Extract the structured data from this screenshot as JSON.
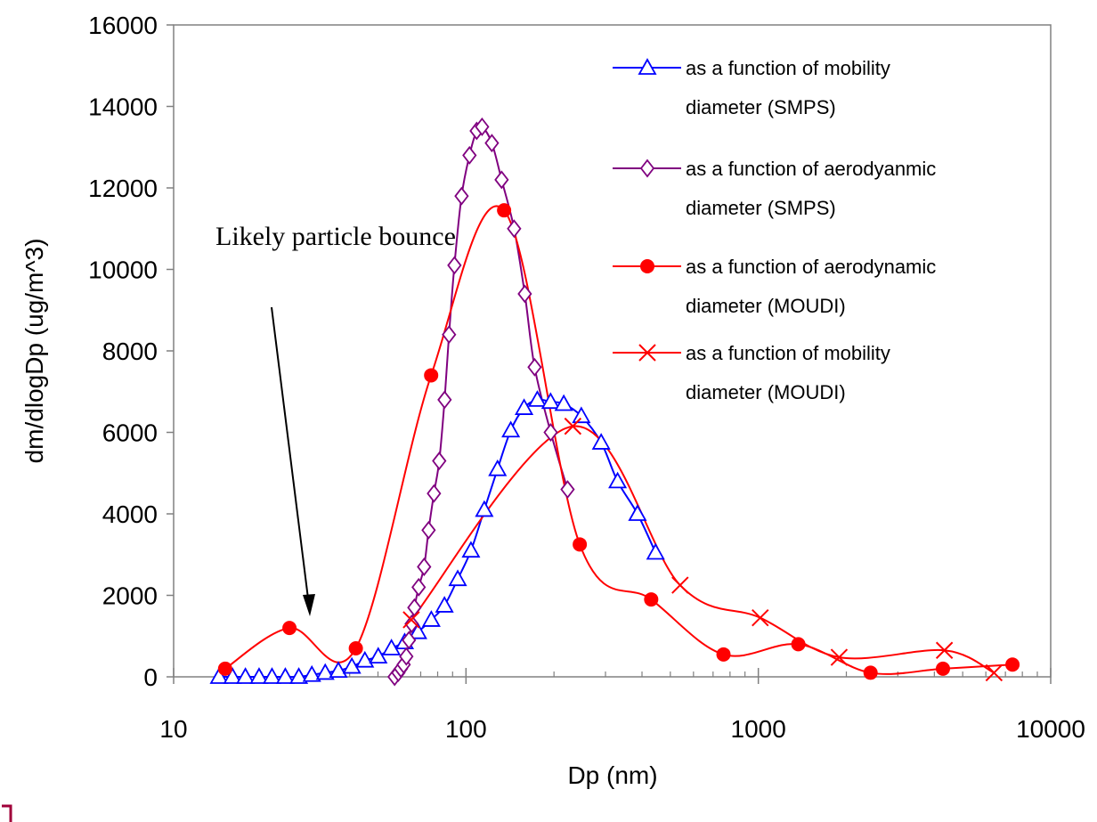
{
  "chart_data": {
    "type": "line",
    "xscale": "log",
    "xlabel": "Dp (nm)",
    "ylabel": "dm/dlogDp (ug/m^3)",
    "xlim": [
      10,
      10000
    ],
    "xticks": [
      10,
      100,
      1000,
      10000
    ],
    "ylim": [
      0,
      16000
    ],
    "yticks": [
      0,
      2000,
      4000,
      6000,
      8000,
      10000,
      12000,
      14000,
      16000
    ],
    "annotation": "Likely particle bounce",
    "series": [
      {
        "name": "as a function of mobility diameter (SMPS)",
        "color": "#0000ff",
        "marker": "triangle",
        "x": [
          14.3,
          15.9,
          17.6,
          19.6,
          21.7,
          24.1,
          26.8,
          29.7,
          33,
          36.6,
          40.7,
          45.1,
          50.1,
          55.6,
          61.7,
          68.5,
          76.1,
          84.4,
          93.7,
          104,
          115.5,
          128.2,
          142.3,
          158,
          175.4,
          194.7,
          216,
          248,
          290,
          330,
          386,
          445
        ],
        "values": [
          0,
          0,
          0,
          0,
          0,
          0,
          0,
          50,
          100,
          150,
          250,
          400,
          500,
          700,
          850,
          1100,
          1400,
          1750,
          2400,
          3100,
          4100,
          5100,
          6050,
          6600,
          6800,
          6750,
          6700,
          6400,
          5750,
          4800,
          4000,
          3050
        ]
      },
      {
        "name": "as a function of aerodyanmic diameter (SMPS)",
        "color": "#800080",
        "marker": "diamond",
        "x": [
          57,
          58.7,
          59.9,
          61.2,
          62.5,
          63.8,
          65.2,
          66.6,
          68.9,
          71.9,
          74.5,
          77.7,
          81,
          84.5,
          87.5,
          91.3,
          96.6,
          102.8,
          108.8,
          113.5,
          122.6,
          132.4,
          146.1,
          158.9,
          171.7,
          194.9,
          222.6
        ],
        "values": [
          0,
          100,
          200,
          300,
          500,
          900,
          1300,
          1700,
          2200,
          2700,
          3600,
          4500,
          5300,
          6800,
          8400,
          10100,
          11800,
          12800,
          13400,
          13500,
          13100,
          12200,
          11000,
          9400,
          7600,
          6000,
          4600
        ]
      },
      {
        "name": "as a function of aerodynamic diameter (MOUDI)",
        "color": "#ff0000",
        "marker": "circle",
        "x": [
          15,
          24.9,
          42,
          76,
          135,
          245,
          430,
          760,
          1370,
          2420,
          4280,
          7400
        ],
        "values": [
          200,
          1200,
          700,
          7400,
          11450,
          3250,
          1900,
          550,
          800,
          100,
          200,
          300
        ]
      },
      {
        "name": "as a function of mobility diameter (MOUDI)",
        "color": "#ff0000",
        "marker": "x",
        "x": [
          65,
          232,
          540,
          1015,
          1890,
          4330,
          6400
        ],
        "values": [
          1400,
          6150,
          2250,
          1450,
          480,
          650,
          100
        ]
      }
    ]
  }
}
